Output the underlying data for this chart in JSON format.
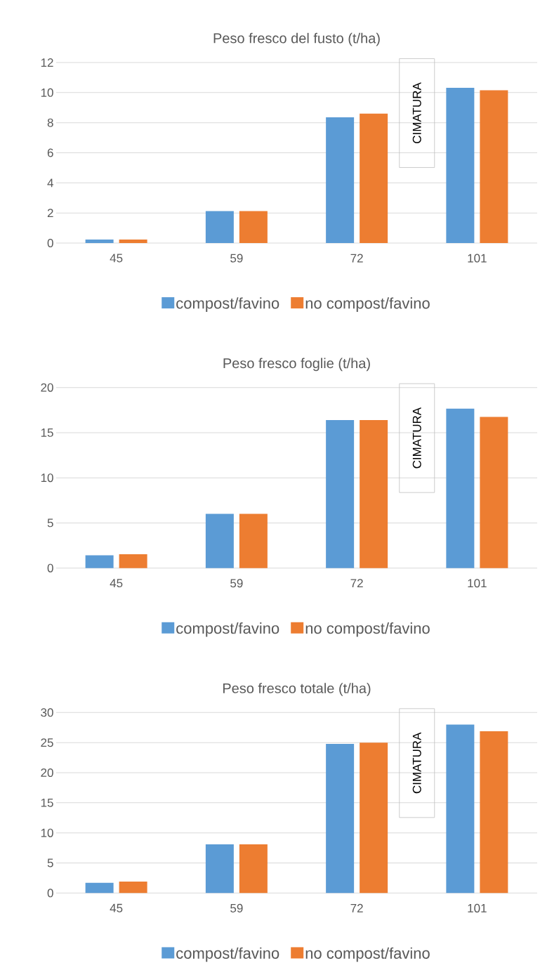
{
  "chart_data": [
    {
      "type": "bar",
      "title": "Peso fresco del fusto (t/ha)",
      "categories": [
        "45",
        "59",
        "72",
        "101"
      ],
      "series": [
        {
          "name": "compost/favino",
          "color": "#5b9bd5",
          "values": [
            0.23,
            2.12,
            8.36,
            10.32
          ]
        },
        {
          "name": "no compost/favino",
          "color": "#ed7d31",
          "values": [
            0.23,
            2.12,
            8.6,
            10.16
          ]
        }
      ],
      "ylim": [
        0,
        12
      ],
      "yticks": [
        0,
        2,
        4,
        6,
        8,
        10,
        12
      ],
      "grid": "y",
      "legend": "bottom",
      "annotations": [
        "CIMATURA"
      ]
    },
    {
      "type": "bar",
      "title": "Peso fresco foglie (t/ha)",
      "categories": [
        "45",
        "59",
        "72",
        "101"
      ],
      "series": [
        {
          "name": "compost/favino",
          "color": "#5b9bd5",
          "values": [
            1.42,
            6.0,
            16.4,
            17.66
          ]
        },
        {
          "name": "no compost/favino",
          "color": "#ed7d31",
          "values": [
            1.53,
            6.0,
            16.4,
            16.74
          ]
        }
      ],
      "ylim": [
        0,
        20
      ],
      "yticks": [
        0,
        5,
        10,
        15,
        20
      ],
      "grid": "y",
      "legend": "bottom",
      "annotations": [
        "CIMATURA"
      ]
    },
    {
      "type": "bar",
      "title": "Peso fresco totale (t/ha)",
      "categories": [
        "45",
        "59",
        "72",
        "101"
      ],
      "series": [
        {
          "name": "compost/favino",
          "color": "#5b9bd5",
          "values": [
            1.7,
            8.1,
            24.8,
            28.0
          ]
        },
        {
          "name": "no compost/favino",
          "color": "#ed7d31",
          "values": [
            1.9,
            8.1,
            25.0,
            26.9
          ]
        }
      ],
      "ylim": [
        0,
        30
      ],
      "yticks": [
        0,
        5,
        10,
        15,
        20,
        25,
        30
      ],
      "grid": "y",
      "legend": "bottom",
      "annotations": [
        "CIMATURA"
      ]
    }
  ]
}
